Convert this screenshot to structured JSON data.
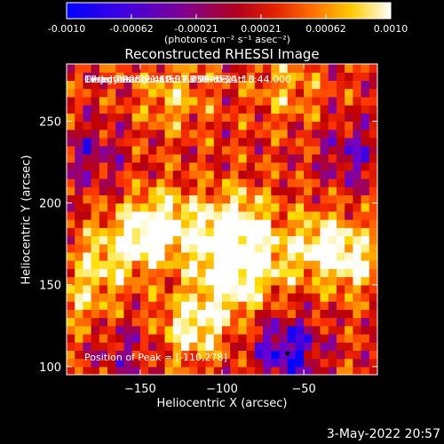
{
  "colorbar": {
    "ticks": [
      "-0.0010",
      "-0.00062",
      "-0.00021",
      "0.00021",
      "0.00062",
      "0.0010"
    ],
    "units_label": "(photons cm⁻² s⁻¹ asec⁻²)"
  },
  "plot": {
    "title": "Reconstructed RHESSI Image",
    "overlay_lines": [
      "17-Jul-2003 21:10:12.000 to 21:13:44.000",
      "Detectors: 3F 4F 5F 6F 7F 8F, Att 0",
      "Energy Range: 12.0 - 25.0 keV",
      "Clean      Total counts: 1.33E+03"
    ],
    "peak_label": "Position of Peak = [-110,278]"
  },
  "footer": {
    "date": "3-May-2022 20:57"
  },
  "colors": {
    "background": "#000000",
    "colormap": [
      "#0000ff",
      "#6a00d0",
      "#900080",
      "#c00000",
      "#ff3300",
      "#ff8800",
      "#ffdd00",
      "#ffffff"
    ]
  },
  "chart_data": {
    "type": "heatmap",
    "title": "Reconstructed RHESSI Image",
    "xlabel": "Heliocentric X (arcsec)",
    "ylabel": "Heliocentric Y (arcsec)",
    "xlim": [
      -195,
      -5
    ],
    "ylim": [
      95,
      285
    ],
    "xticks": [
      -150,
      -100,
      -50
    ],
    "yticks": [
      100,
      150,
      200,
      250
    ],
    "value_range": [
      -0.001,
      0.001
    ],
    "value_units": "photons cm^-2 s^-1 asec^-2",
    "peak": [
      -110,
      278
    ],
    "bright_regions": [
      {
        "x": -150,
        "y": 178,
        "level": 0.0009
      },
      {
        "x": -135,
        "y": 190,
        "level": 0.0008
      },
      {
        "x": -118,
        "y": 125,
        "level": 0.001
      },
      {
        "x": -105,
        "y": 175,
        "level": 0.0008
      },
      {
        "x": -95,
        "y": 150,
        "level": 0.0009
      },
      {
        "x": -90,
        "y": 190,
        "level": 0.0009
      },
      {
        "x": -75,
        "y": 165,
        "level": 0.0007
      },
      {
        "x": -40,
        "y": 175,
        "level": 0.0009
      },
      {
        "x": -20,
        "y": 165,
        "level": 0.0008
      },
      {
        "x": -130,
        "y": 265,
        "level": 0.0006
      },
      {
        "x": -175,
        "y": 165,
        "level": 0.0006
      },
      {
        "x": -60,
        "y": 270,
        "level": 0.0005
      },
      {
        "x": -185,
        "y": 140,
        "level": 0.0005
      }
    ],
    "dim_regions": [
      {
        "x": -60,
        "y": 110,
        "level": -0.001
      },
      {
        "x": -20,
        "y": 230,
        "level": -0.0006
      },
      {
        "x": -180,
        "y": 230,
        "level": -0.0005
      },
      {
        "x": -160,
        "y": 110,
        "level": -0.0004
      }
    ]
  }
}
